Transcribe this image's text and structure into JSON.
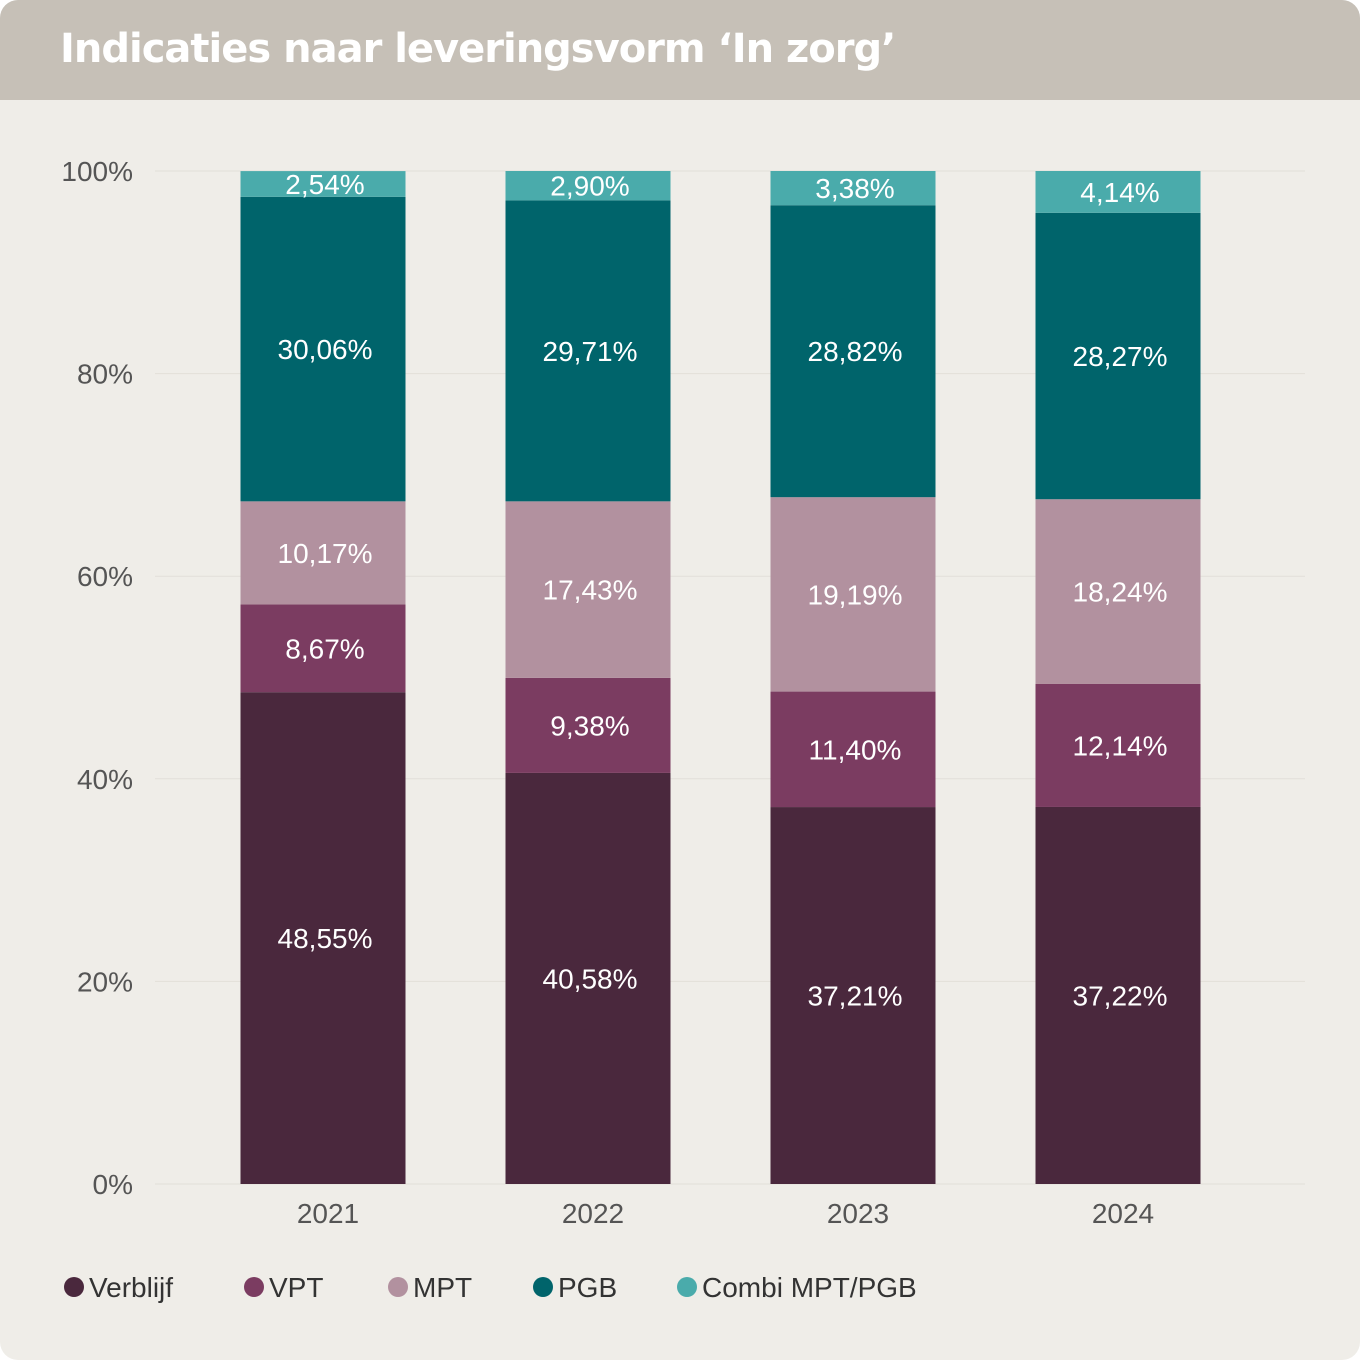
{
  "header": {
    "title": "Indicaties naar leveringsvorm ‘In zorg’"
  },
  "chart_data": {
    "type": "bar",
    "stacked": true,
    "categories": [
      "2021",
      "2022",
      "2023",
      "2024"
    ],
    "ylim": [
      0,
      100
    ],
    "yticks": [
      "0%",
      "20%",
      "40%",
      "60%",
      "80%",
      "100%"
    ],
    "yticks_values": [
      0,
      20,
      40,
      60,
      80,
      100
    ],
    "grid": true,
    "legend_position": "bottom-left",
    "series": [
      {
        "name": "Verblijf",
        "color": "#4a283d",
        "values": [
          48.55,
          40.58,
          37.21,
          37.22
        ],
        "labels": [
          "48,55%",
          "40,58%",
          "37,21%",
          "37,22%"
        ]
      },
      {
        "name": "VPT",
        "color": "#7b3c61",
        "values": [
          8.67,
          9.38,
          11.4,
          12.14
        ],
        "labels": [
          "8,67%",
          "9,38%",
          "11,40%",
          "12,14%"
        ]
      },
      {
        "name": "MPT",
        "color": "#b2919f",
        "values": [
          10.17,
          17.43,
          19.19,
          18.24
        ],
        "labels": [
          "10,17%",
          "17,43%",
          "19,19%",
          "18,24%"
        ]
      },
      {
        "name": "PGB",
        "color": "#00646b",
        "values": [
          30.06,
          29.71,
          28.82,
          28.27
        ],
        "labels": [
          "30,06%",
          "29,71%",
          "28,82%",
          "28,27%"
        ]
      },
      {
        "name": "Combi MPT/PGB",
        "color": "#4aabab",
        "values": [
          2.54,
          2.9,
          3.38,
          4.14
        ],
        "labels": [
          "2,54%",
          "2,90%",
          "3,38%",
          "4,14%"
        ]
      }
    ],
    "label_color": "#ffffff",
    "axis_text_color": "#555555"
  }
}
